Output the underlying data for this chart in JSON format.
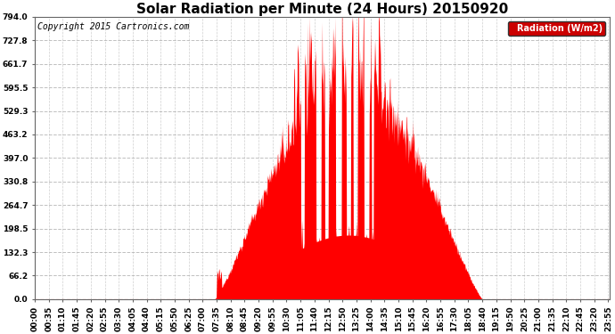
{
  "title": "Solar Radiation per Minute (24 Hours) 20150920",
  "copyright": "Copyright 2015 Cartronics.com",
  "legend_label": "Radiation (W/m2)",
  "ytick_values": [
    0.0,
    66.2,
    132.3,
    198.5,
    264.7,
    330.8,
    397.0,
    463.2,
    529.3,
    595.5,
    661.7,
    727.8,
    794.0
  ],
  "ymax": 794.0,
  "fill_color": "#ff0000",
  "background_color": "#ffffff",
  "plot_bg_color": "#ffffff",
  "grid_color": "#b0b0b0",
  "legend_bg": "#cc0000",
  "legend_text_color": "#ffffff",
  "title_fontsize": 11,
  "tick_fontsize": 6.5,
  "copyright_fontsize": 7,
  "tick_interval_minutes": 35,
  "sunrise_minute": 450,
  "sunset_minute": 1120,
  "peak_minute": 800
}
